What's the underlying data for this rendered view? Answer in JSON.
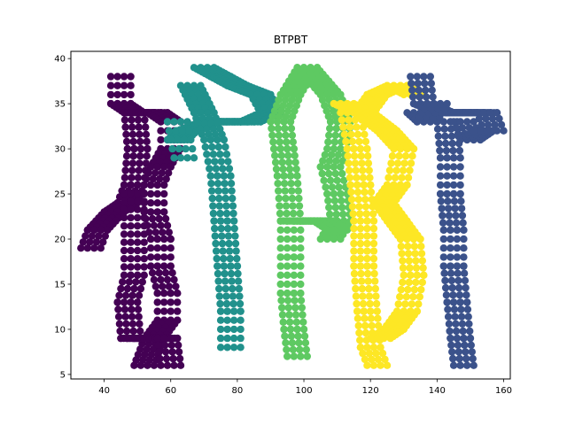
{
  "chart_data": {
    "type": "scatter",
    "title": "BTPBT",
    "xlabel": "",
    "ylabel": "",
    "xlim": [
      30,
      162
    ],
    "ylim": [
      4.5,
      40.8
    ],
    "xticks": [
      40,
      60,
      80,
      100,
      120,
      140,
      160
    ],
    "yticks": [
      5,
      10,
      15,
      20,
      25,
      30,
      35,
      40
    ],
    "grid": false,
    "legend": "none",
    "series": [
      {
        "color": "#440154",
        "strokes": [
          [
            [
              45,
              38
            ],
            [
              45,
              35
            ],
            [
              49,
              34
            ],
            [
              50,
              30
            ],
            [
              49,
              26
            ],
            [
              47,
              24
            ],
            [
              43,
              23
            ],
            [
              38,
              21
            ],
            [
              36,
              19
            ]
          ],
          [
            [
              49,
              34
            ],
            [
              56,
              34
            ],
            [
              60,
              33
            ],
            [
              60,
              30
            ],
            [
              57,
              28
            ],
            [
              55,
              26
            ],
            [
              55,
              23
            ],
            [
              57,
              20
            ],
            [
              57,
              17
            ],
            [
              59,
              14
            ],
            [
              59,
              11
            ],
            [
              55,
              9
            ],
            [
              52,
              6
            ]
          ],
          [
            [
              49,
              26
            ],
            [
              49,
              16
            ],
            [
              47,
              13
            ],
            [
              48,
              9
            ],
            [
              54,
              9
            ],
            [
              59,
              9
            ],
            [
              60,
              6
            ]
          ]
        ]
      },
      {
        "color": "#21918c",
        "strokes": [
          [
            [
              70,
              39
            ],
            [
              75,
              38
            ],
            [
              80,
              37
            ],
            [
              87,
              36
            ],
            [
              90,
              34
            ],
            [
              84,
              33
            ],
            [
              78,
              33
            ],
            [
              72,
              33
            ],
            [
              65,
              32
            ],
            [
              62,
              31
            ]
          ],
          [
            [
              66,
              37
            ],
            [
              70,
              34
            ],
            [
              73,
              31
            ],
            [
              75,
              27
            ],
            [
              76,
              22
            ],
            [
              77,
              17
            ],
            [
              78,
              12
            ],
            [
              78,
              8
            ]
          ],
          [
            [
              62,
              33
            ],
            [
              63,
              31
            ],
            [
              64,
              29
            ]
          ]
        ]
      },
      {
        "color": "#5ec962",
        "strokes": [
          [
            [
              93,
              33
            ],
            [
              96,
              36
            ],
            [
              101,
              39
            ],
            [
              108,
              36
            ],
            [
              111,
              33
            ],
            [
              110,
              30
            ],
            [
              108,
              28
            ],
            [
              110,
              25
            ],
            [
              111,
              22
            ],
            [
              108,
              20
            ]
          ],
          [
            [
              93,
              33
            ],
            [
              94,
              30
            ],
            [
              95,
              27
            ],
            [
              96,
              22
            ],
            [
              96,
              18
            ],
            [
              96,
              14
            ],
            [
              97,
              10
            ],
            [
              98,
              7
            ]
          ],
          [
            [
              96,
              22
            ],
            [
              101,
              22
            ],
            [
              106,
              22
            ],
            [
              110,
              21
            ]
          ]
        ]
      },
      {
        "color": "#fde725",
        "strokes": [
          [
            [
              112,
              35
            ],
            [
              118,
              34
            ],
            [
              122,
              36
            ],
            [
              128,
              37
            ],
            [
              133,
              36
            ]
          ],
          [
            [
              114,
              34
            ],
            [
              116,
              30
            ],
            [
              117,
              26
            ],
            [
              118,
              22
            ],
            [
              118,
              17
            ],
            [
              119,
              12
            ],
            [
              120,
              8
            ],
            [
              122,
              6
            ]
          ],
          [
            [
              118,
              34
            ],
            [
              125,
              32
            ],
            [
              130,
              30
            ],
            [
              128,
              26
            ],
            [
              124,
              24
            ],
            [
              128,
              22
            ],
            [
              132,
              20
            ],
            [
              133,
              16
            ],
            [
              131,
              12
            ],
            [
              127,
              10
            ],
            [
              123,
              9
            ]
          ]
        ]
      },
      {
        "color": "#3b528b",
        "strokes": [
          [
            [
              135,
              38
            ],
            [
              136,
              35
            ],
            [
              142,
              34
            ],
            [
              149,
              34
            ],
            [
              155,
              34
            ],
            [
              157,
              32
            ]
          ],
          [
            [
              143,
              33
            ],
            [
              144,
              29
            ],
            [
              144,
              25
            ],
            [
              145,
              21
            ],
            [
              145,
              17
            ],
            [
              146,
              13
            ],
            [
              147,
              9
            ],
            [
              148,
              6
            ]
          ],
          [
            [
              134,
              34
            ],
            [
              137,
              33
            ],
            [
              140,
              35
            ]
          ],
          [
            [
              148,
              33
            ],
            [
              150,
              31
            ],
            [
              154,
              32
            ]
          ]
        ]
      }
    ]
  }
}
